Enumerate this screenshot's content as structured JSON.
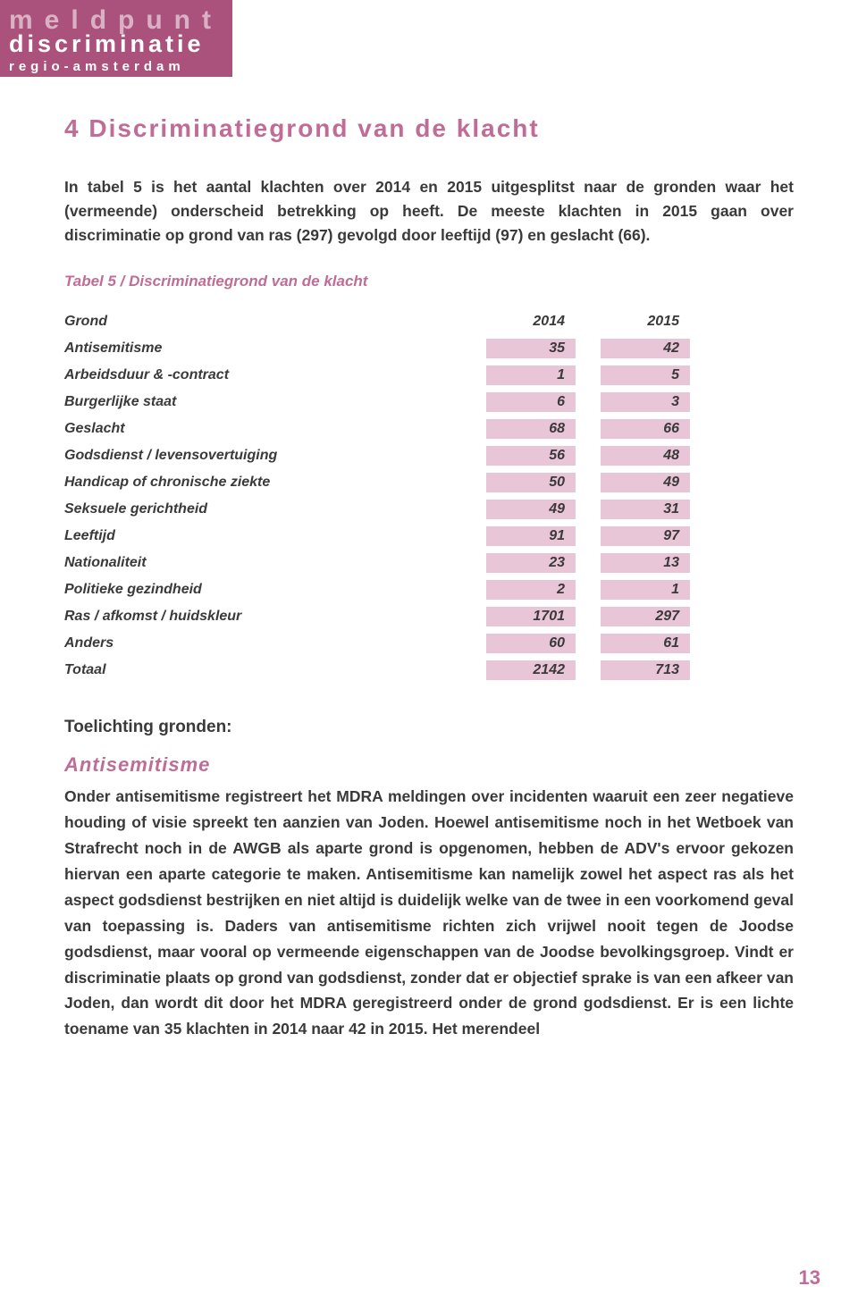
{
  "logo": {
    "line1": "meldpunt",
    "line2": "discriminatie",
    "line3": "regio-amsterdam"
  },
  "heading": "4 Discriminatiegrond van de klacht",
  "intro": "In tabel 5 is het aantal klachten over 2014 en 2015 uitgesplitst naar de gronden waar het (vermeende) onderscheid betrekking op heeft. De meeste klachten in 2015 gaan over discriminatie op grond van ras (297) gevolgd door leeftijd (97) en geslacht (66).",
  "table": {
    "caption": "Tabel 5 / Discriminatiegrond van de klacht",
    "header": {
      "col1": "Grond",
      "col2": "2014",
      "col3": "2015"
    },
    "cell_bg": "#e8c5d7",
    "rows": [
      {
        "label": "Antisemitisme",
        "y2014": "35",
        "y2015": "42"
      },
      {
        "label": "Arbeidsduur & -contract",
        "y2014": "1",
        "y2015": "5"
      },
      {
        "label": "Burgerlijke staat",
        "y2014": "6",
        "y2015": "3"
      },
      {
        "label": "Geslacht",
        "y2014": "68",
        "y2015": "66"
      },
      {
        "label": "Godsdienst / levensovertuiging",
        "y2014": "56",
        "y2015": "48"
      },
      {
        "label": "Handicap of chronische ziekte",
        "y2014": "50",
        "y2015": "49"
      },
      {
        "label": "Seksuele gerichtheid",
        "y2014": "49",
        "y2015": "31"
      },
      {
        "label": "Leeftijd",
        "y2014": "91",
        "y2015": "97"
      },
      {
        "label": "Nationaliteit",
        "y2014": "23",
        "y2015": "13"
      },
      {
        "label": "Politieke gezindheid",
        "y2014": "2",
        "y2015": "1"
      },
      {
        "label": "Ras / afkomst / huidskleur",
        "y2014": "1701",
        "y2015": "297"
      },
      {
        "label": "Anders",
        "y2014": "60",
        "y2015": "61"
      },
      {
        "label": "Totaal",
        "y2014": "2142",
        "y2015": "713"
      }
    ]
  },
  "subheading": "Toelichting gronden:",
  "section": {
    "title": "Antisemitisme",
    "body": "Onder antisemitisme registreert het MDRA meldingen over incidenten waaruit een zeer negatieve houding of visie spreekt ten aanzien van Joden. Hoewel antisemitisme noch in het Wetboek van Strafrecht noch in de AWGB als aparte grond is opgenomen, hebben de ADV's ervoor gekozen hiervan een aparte categorie te maken. Antisemitisme kan namelijk zowel het aspect ras als het aspect godsdienst bestrijken en niet altijd is duidelijk welke van de twee in een voorkomend geval van toepassing is. Daders van antisemitisme richten zich vrijwel nooit tegen de Joodse godsdienst, maar vooral op vermeende eigenschappen van de Joodse bevolkingsgroep. Vindt er discriminatie plaats op grond van godsdienst, zonder dat er objectief sprake is van een afkeer van Joden, dan wordt dit door het MDRA geregistreerd onder de grond godsdienst.\nEr is een lichte toename van 35 klachten in 2014 naar 42 in 2015. Het merendeel"
  },
  "page_number": "13",
  "colors": {
    "brand": "#ab527c",
    "accent": "#bf6d97",
    "text": "#3a3a3a",
    "table_cell_bg": "#e8c5d7",
    "page_bg": "#ffffff"
  },
  "typography": {
    "body_font": "Verdana",
    "heading_size_pt": 21,
    "body_size_pt": 13,
    "table_size_pt": 12
  }
}
